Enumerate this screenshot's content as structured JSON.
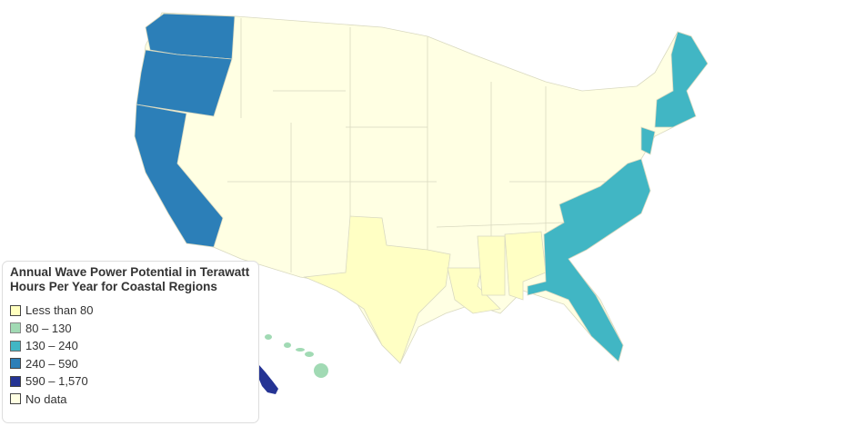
{
  "legend": {
    "title": "Annual Wave Power Potential in Terawatt Hours Per Year for Coastal Regions",
    "items": [
      {
        "label": "Less than 80",
        "color": "#ffffbf"
      },
      {
        "label": "80 – 130",
        "color": "#a1dab4"
      },
      {
        "label": "130 – 240",
        "color": "#41b6c4"
      },
      {
        "label": "240 – 590",
        "color": "#2c7fb8"
      },
      {
        "label": "590 – 1,570",
        "color": "#253494"
      },
      {
        "label": "No data",
        "color": "#ffffe3"
      }
    ]
  },
  "regions": {
    "Washington": "240 – 590",
    "Oregon": "240 – 590",
    "California": "240 – 590",
    "Alaska": "590 – 1,570",
    "Hawaii": "80 – 130",
    "Texas": "Less than 80",
    "Louisiana": "Less than 80",
    "Mississippi": "Less than 80",
    "Alabama": "Less than 80",
    "Atlantic Southeast": "130 – 240",
    "New Jersey": "130 – 240",
    "New England": "130 – 240"
  }
}
